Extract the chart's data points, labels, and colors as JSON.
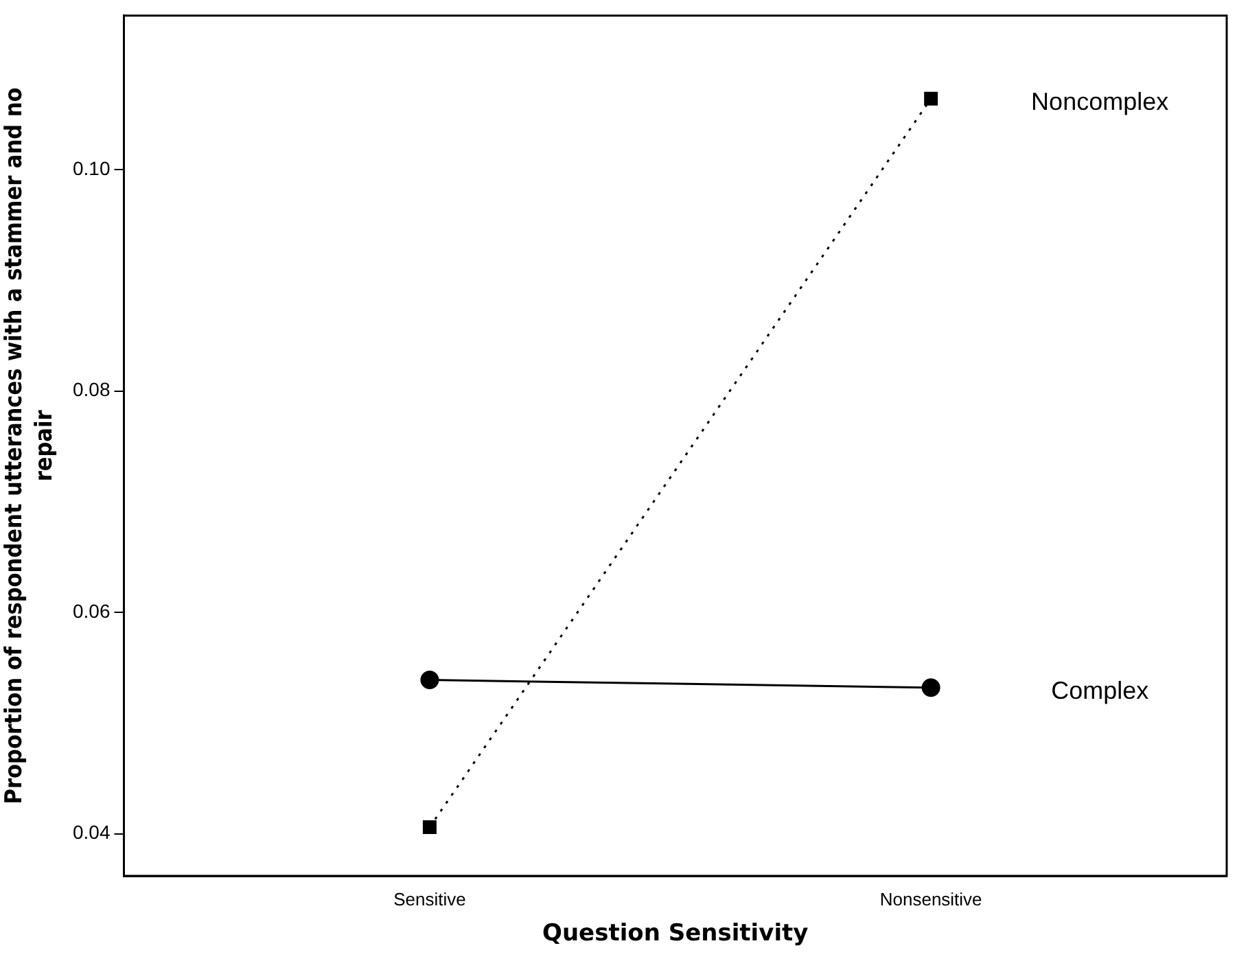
{
  "chart_data": {
    "type": "line",
    "xlabel": "Question Sensitivity",
    "ylabel": "Proportion of respondent utterances with a stammer and no repair",
    "categories": [
      "Sensitive",
      "Nonsensitive"
    ],
    "series": [
      {
        "name": "Complex",
        "color": "#000000",
        "values": [
          0.0539,
          0.0532
        ],
        "marker": "circle",
        "line_style": "solid"
      },
      {
        "name": "Noncomplex",
        "color": "#000000",
        "values": [
          0.0406,
          0.1064
        ],
        "marker": "square",
        "line_style": "dotted"
      }
    ],
    "ylim": [
      0.0362,
      0.1139
    ],
    "yticks": [
      {
        "value": 0.04,
        "label": "0.04"
      },
      {
        "value": 0.06,
        "label": "0.06"
      },
      {
        "value": 0.08,
        "label": "0.08"
      },
      {
        "value": 0.1,
        "label": "0.10"
      }
    ],
    "grid": false,
    "legend": false
  }
}
